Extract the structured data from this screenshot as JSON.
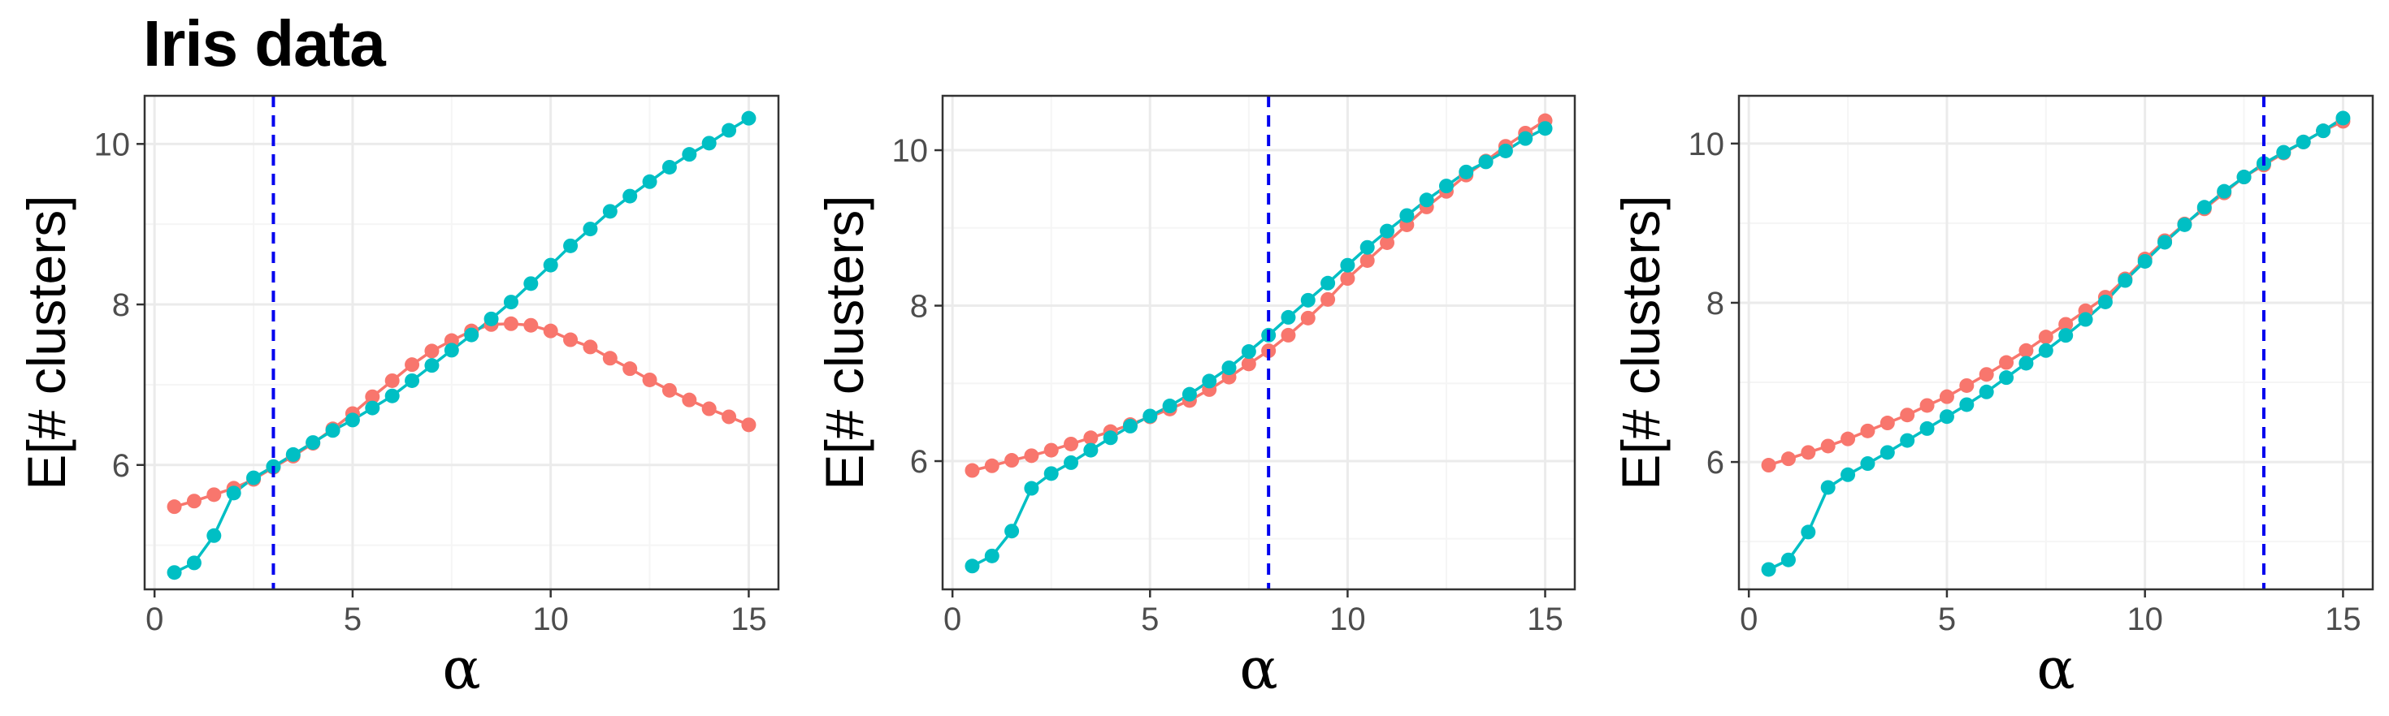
{
  "title": "Iris data",
  "colors": {
    "series_1": "#F8766D",
    "series_2": "#00BFC4",
    "vline": "#0000EE",
    "grid_major": "#EBEBEB",
    "grid_minor": "#F5F5F5",
    "panel_border": "#333333"
  },
  "chart_data": [
    {
      "type": "line",
      "title": "",
      "xlabel": "α",
      "ylabel": "E[# clusters]",
      "xlim": [
        -0.25,
        15.75
      ],
      "ylim": [
        4.45,
        10.6
      ],
      "xticks": [
        0,
        5,
        10,
        15
      ],
      "yticks": [
        6,
        8,
        10
      ],
      "grid": true,
      "legend": "none",
      "vline": 3,
      "x": [
        0.5,
        1,
        1.5,
        2,
        2.5,
        3,
        3.5,
        4,
        4.5,
        5,
        5.5,
        6,
        6.5,
        7,
        7.5,
        8,
        8.5,
        9,
        9.5,
        10,
        10.5,
        11,
        11.5,
        12,
        12.5,
        13,
        13.5,
        14,
        14.5,
        15
      ],
      "series": [
        {
          "color": "#F8766D",
          "values": [
            5.48,
            5.55,
            5.63,
            5.71,
            5.82,
            5.97,
            6.11,
            6.27,
            6.45,
            6.64,
            6.85,
            7.05,
            7.25,
            7.42,
            7.55,
            7.67,
            7.75,
            7.76,
            7.74,
            7.67,
            7.56,
            7.47,
            7.33,
            7.2,
            7.06,
            6.93,
            6.81,
            6.7,
            6.6,
            6.5
          ]
        },
        {
          "color": "#00BFC4",
          "values": [
            4.66,
            4.78,
            5.12,
            5.65,
            5.84,
            5.98,
            6.13,
            6.28,
            6.43,
            6.56,
            6.71,
            6.86,
            7.05,
            7.24,
            7.43,
            7.62,
            7.82,
            8.03,
            8.26,
            8.49,
            8.73,
            8.94,
            9.16,
            9.35,
            9.53,
            9.71,
            9.87,
            10.01,
            10.17,
            10.32
          ]
        }
      ]
    },
    {
      "type": "line",
      "title": "",
      "xlabel": "α",
      "ylabel": "E[# clusters]",
      "xlim": [
        -0.25,
        15.75
      ],
      "ylim": [
        4.35,
        10.7
      ],
      "xticks": [
        0,
        5,
        10,
        15
      ],
      "yticks": [
        6,
        8,
        10
      ],
      "grid": true,
      "legend": "none",
      "vline": 8,
      "x": [
        0.5,
        1,
        1.5,
        2,
        2.5,
        3,
        3.5,
        4,
        4.5,
        5,
        5.5,
        6,
        6.5,
        7,
        7.5,
        8,
        8.5,
        9,
        9.5,
        10,
        10.5,
        11,
        11.5,
        12,
        12.5,
        13,
        13.5,
        14,
        14.5,
        15
      ],
      "series": [
        {
          "color": "#F8766D",
          "values": [
            5.88,
            5.94,
            6.01,
            6.07,
            6.14,
            6.22,
            6.3,
            6.38,
            6.47,
            6.57,
            6.67,
            6.78,
            6.92,
            7.08,
            7.25,
            7.42,
            7.62,
            7.84,
            8.08,
            8.35,
            8.58,
            8.81,
            9.04,
            9.27,
            9.47,
            9.68,
            9.86,
            10.05,
            10.22,
            10.38
          ]
        },
        {
          "color": "#00BFC4",
          "values": [
            4.65,
            4.78,
            5.1,
            5.65,
            5.84,
            5.98,
            6.14,
            6.3,
            6.45,
            6.58,
            6.71,
            6.86,
            7.03,
            7.2,
            7.41,
            7.62,
            7.85,
            8.07,
            8.29,
            8.52,
            8.75,
            8.96,
            9.16,
            9.36,
            9.54,
            9.72,
            9.85,
            9.99,
            10.15,
            10.28
          ]
        }
      ]
    },
    {
      "type": "line",
      "title": "",
      "xlabel": "α",
      "ylabel": "E[# clusters]",
      "xlim": [
        -0.25,
        15.75
      ],
      "ylim": [
        4.4,
        10.6
      ],
      "xticks": [
        0,
        5,
        10,
        15
      ],
      "yticks": [
        6,
        8,
        10
      ],
      "grid": true,
      "legend": "none",
      "vline": 13,
      "x": [
        0.5,
        1,
        1.5,
        2,
        2.5,
        3,
        3.5,
        4,
        4.5,
        5,
        5.5,
        6,
        6.5,
        7,
        7.5,
        8,
        8.5,
        9,
        9.5,
        10,
        10.5,
        11,
        11.5,
        12,
        12.5,
        13,
        13.5,
        14,
        14.5,
        15
      ],
      "series": [
        {
          "color": "#F8766D",
          "values": [
            5.96,
            6.04,
            6.12,
            6.2,
            6.29,
            6.39,
            6.49,
            6.59,
            6.71,
            6.82,
            6.96,
            7.1,
            7.25,
            7.4,
            7.57,
            7.73,
            7.9,
            8.07,
            8.3,
            8.55,
            8.78,
            8.99,
            9.18,
            9.38,
            9.58,
            9.73,
            9.88,
            10.02,
            10.16,
            10.28
          ]
        },
        {
          "color": "#00BFC4",
          "values": [
            4.65,
            4.77,
            5.12,
            5.68,
            5.84,
            5.98,
            6.12,
            6.27,
            6.42,
            6.57,
            6.72,
            6.88,
            7.06,
            7.24,
            7.4,
            7.59,
            7.79,
            8.01,
            8.28,
            8.52,
            8.76,
            8.98,
            9.2,
            9.4,
            9.58,
            9.75,
            9.89,
            10.02,
            10.16,
            10.32
          ]
        }
      ]
    }
  ]
}
